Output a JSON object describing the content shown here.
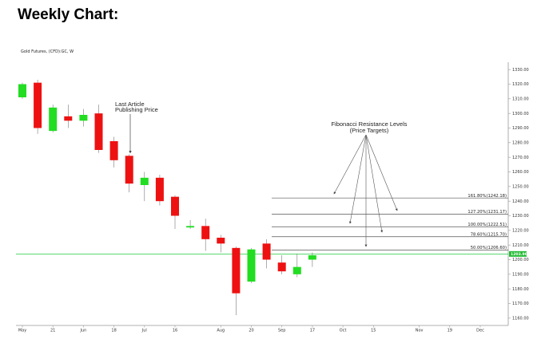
{
  "page": {
    "title": "Weekly Chart:"
  },
  "chart_data": {
    "type": "candlestick",
    "title": "Gold Futures, (CFD):GC, W",
    "ylim": [
      1155,
      1335
    ],
    "y_ticks": [
      1160,
      1170,
      1180,
      1190,
      1200,
      1210,
      1220,
      1230,
      1240,
      1250,
      1260,
      1270,
      1280,
      1290,
      1300,
      1310,
      1320,
      1330
    ],
    "x_ticks": [
      {
        "label": "May",
        "index": 0
      },
      {
        "label": "21",
        "index": 2
      },
      {
        "label": "Jun",
        "index": 4
      },
      {
        "label": "18",
        "index": 6
      },
      {
        "label": "Jul",
        "index": 8
      },
      {
        "label": "16",
        "index": 10
      },
      {
        "label": "Aug",
        "index": 13
      },
      {
        "label": "20",
        "index": 15
      },
      {
        "label": "Sep",
        "index": 17
      },
      {
        "label": "17",
        "index": 19
      },
      {
        "label": "Oct",
        "index": 21
      },
      {
        "label": "15",
        "index": 23
      },
      {
        "label": "Nov",
        "index": 26
      },
      {
        "label": "19",
        "index": 28
      },
      {
        "label": "Dec",
        "index": 30
      }
    ],
    "candles": [
      {
        "o": 1311,
        "h": 1321,
        "l": 1310,
        "c": 1320
      },
      {
        "o": 1321,
        "h": 1323,
        "l": 1286,
        "c": 1290
      },
      {
        "o": 1288,
        "h": 1306,
        "l": 1287,
        "c": 1304
      },
      {
        "o": 1298,
        "h": 1306,
        "l": 1290,
        "c": 1295
      },
      {
        "o": 1295,
        "h": 1303,
        "l": 1291,
        "c": 1299
      },
      {
        "o": 1300,
        "h": 1306,
        "l": 1273,
        "c": 1275
      },
      {
        "o": 1281,
        "h": 1284,
        "l": 1263,
        "c": 1268
      },
      {
        "o": 1271,
        "h": 1272,
        "l": 1246,
        "c": 1252
      },
      {
        "o": 1251,
        "h": 1260,
        "l": 1240,
        "c": 1256
      },
      {
        "o": 1256,
        "h": 1258,
        "l": 1237,
        "c": 1240
      },
      {
        "o": 1243,
        "h": 1244,
        "l": 1221,
        "c": 1230
      },
      {
        "o": 1222,
        "h": 1227,
        "l": 1221,
        "c": 1223
      },
      {
        "o": 1223,
        "h": 1228,
        "l": 1206,
        "c": 1214
      },
      {
        "o": 1215,
        "h": 1217,
        "l": 1205,
        "c": 1211
      },
      {
        "o": 1208,
        "h": 1209,
        "l": 1162,
        "c": 1177
      },
      {
        "o": 1185,
        "h": 1208,
        "l": 1184,
        "c": 1207
      },
      {
        "o": 1211,
        "h": 1214,
        "l": 1194,
        "c": 1200
      },
      {
        "o": 1198,
        "h": 1203,
        "l": 1190,
        "c": 1192
      },
      {
        "o": 1190,
        "h": 1204,
        "l": 1188,
        "c": 1195
      },
      {
        "o": 1200,
        "h": 1205,
        "l": 1195,
        "c": 1203
      }
    ],
    "fibonacci_levels": [
      {
        "label": "161.80%(1242.18)",
        "value": 1242.18
      },
      {
        "label": "127.20%(1231.17)",
        "value": 1231.17
      },
      {
        "label": "100.00%(1222.51)",
        "value": 1222.51
      },
      {
        "label": "78.60%(1215.70)",
        "value": 1215.7
      },
      {
        "label": "50.00%(1206.60)",
        "value": 1206.6
      }
    ],
    "current_price": {
      "value": 1203.9,
      "label": "1203.90"
    },
    "annotations": {
      "last_article": [
        "Last Article",
        "Publishing Price"
      ],
      "fib_title": [
        "Fibonacci Resistance Levels",
        "(Price Targets)"
      ]
    },
    "colors": {
      "up": "#22dd22",
      "down": "#ee1111",
      "fib_line": "#555555",
      "price_line": "#22cc44",
      "price_tag": "#22bb33"
    }
  }
}
